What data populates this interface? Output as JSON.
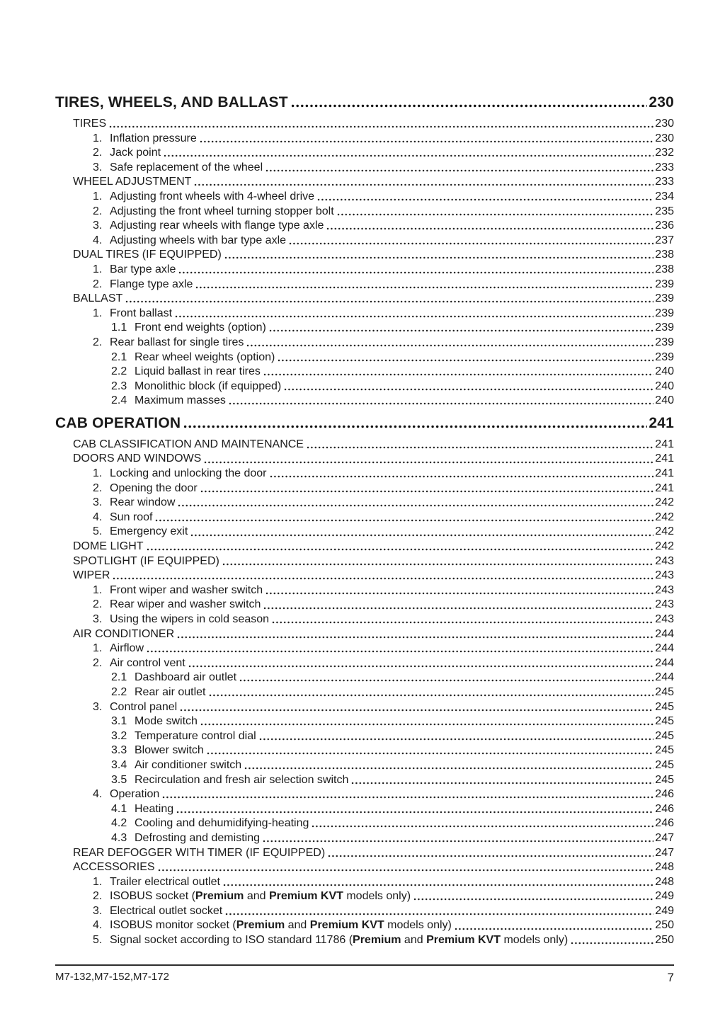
{
  "footer": {
    "model_codes": "M7-132,M7-152,M7-172",
    "page_number": "7"
  },
  "toc": {
    "sections": [
      {
        "title": "TIRES, WHEELS, AND BALLAST",
        "page": "230",
        "entries": [
          {
            "level": 1,
            "text": "TIRES",
            "page": "230"
          },
          {
            "level": 2,
            "num": "1.",
            "text": "Inflation pressure",
            "page": "230"
          },
          {
            "level": 2,
            "num": "2.",
            "text": "Jack point",
            "page": "232"
          },
          {
            "level": 2,
            "num": "3.",
            "text": "Safe replacement of the wheel",
            "page": "233"
          },
          {
            "level": 1,
            "text": "WHEEL ADJUSTMENT",
            "page": "233"
          },
          {
            "level": 2,
            "num": "1.",
            "text": "Adjusting front wheels with 4-wheel drive",
            "page": "234"
          },
          {
            "level": 2,
            "num": "2.",
            "text": "Adjusting the front wheel turning stopper bolt",
            "page": "235"
          },
          {
            "level": 2,
            "num": "3.",
            "text": "Adjusting rear wheels with flange type axle",
            "page": "236"
          },
          {
            "level": 2,
            "num": "4.",
            "text": "Adjusting wheels with bar type axle",
            "page": "237"
          },
          {
            "level": 1,
            "text": "DUAL TIRES (IF EQUIPPED)",
            "page": "238"
          },
          {
            "level": 2,
            "num": "1.",
            "text": "Bar type axle",
            "page": "238"
          },
          {
            "level": 2,
            "num": "2.",
            "text": "Flange type axle",
            "page": "239"
          },
          {
            "level": 1,
            "text": "BALLAST",
            "page": "239"
          },
          {
            "level": 2,
            "num": "1.",
            "text": "Front ballast",
            "page": "239"
          },
          {
            "level": 3,
            "num": "1.1",
            "text": "Front end weights (option)",
            "page": "239"
          },
          {
            "level": 2,
            "num": "2.",
            "text": "Rear ballast for single tires",
            "page": "239"
          },
          {
            "level": 3,
            "num": "2.1",
            "text": "Rear wheel weights (option)",
            "page": "239"
          },
          {
            "level": 3,
            "num": "2.2",
            "text": "Liquid ballast in rear tires",
            "page": "240"
          },
          {
            "level": 3,
            "num": "2.3",
            "text": "Monolithic block (if equipped)",
            "page": "240"
          },
          {
            "level": 3,
            "num": "2.4",
            "text": "Maximum masses",
            "page": "240"
          }
        ]
      },
      {
        "title": "CAB OPERATION",
        "page": "241",
        "entries": [
          {
            "level": 1,
            "text": "CAB CLASSIFICATION AND MAINTENANCE",
            "page": "241"
          },
          {
            "level": 1,
            "text": "DOORS AND WINDOWS",
            "page": "241"
          },
          {
            "level": 2,
            "num": "1.",
            "text": "Locking and unlocking the door",
            "page": "241"
          },
          {
            "level": 2,
            "num": "2.",
            "text": "Opening the door",
            "page": "241"
          },
          {
            "level": 2,
            "num": "3.",
            "text": "Rear window",
            "page": "242"
          },
          {
            "level": 2,
            "num": "4.",
            "text": "Sun roof",
            "page": "242"
          },
          {
            "level": 2,
            "num": "5.",
            "text": "Emergency exit",
            "page": "242"
          },
          {
            "level": 1,
            "text": "DOME LIGHT",
            "page": "242"
          },
          {
            "level": 1,
            "text": "SPOTLIGHT (IF EQUIPPED)",
            "page": "243"
          },
          {
            "level": 1,
            "text": "WIPER",
            "page": "243"
          },
          {
            "level": 2,
            "num": "1.",
            "text": "Front wiper and washer switch",
            "page": "243"
          },
          {
            "level": 2,
            "num": "2.",
            "text": "Rear wiper and washer switch",
            "page": "243"
          },
          {
            "level": 2,
            "num": "3.",
            "text": "Using the wipers in cold season",
            "page": "243"
          },
          {
            "level": 1,
            "text": "AIR CONDITIONER",
            "page": "244"
          },
          {
            "level": 2,
            "num": "1.",
            "text": "Airflow",
            "page": "244"
          },
          {
            "level": 2,
            "num": "2.",
            "text": "Air control vent",
            "page": "244"
          },
          {
            "level": 3,
            "num": "2.1",
            "text": "Dashboard air outlet",
            "page": "244"
          },
          {
            "level": 3,
            "num": "2.2",
            "text": "Rear air outlet",
            "page": "245"
          },
          {
            "level": 2,
            "num": "3.",
            "text": "Control panel",
            "page": "245"
          },
          {
            "level": 3,
            "num": "3.1",
            "text": "Mode switch",
            "page": "245"
          },
          {
            "level": 3,
            "num": "3.2",
            "text": "Temperature control dial",
            "page": "245"
          },
          {
            "level": 3,
            "num": "3.3",
            "text": "Blower switch",
            "page": "245"
          },
          {
            "level": 3,
            "num": "3.4",
            "text": "Air conditioner switch",
            "page": "245"
          },
          {
            "level": 3,
            "num": "3.5",
            "text": "Recirculation and fresh air selection switch",
            "page": "245"
          },
          {
            "level": 2,
            "num": "4.",
            "text": "Operation",
            "page": "246"
          },
          {
            "level": 3,
            "num": "4.1",
            "text": "Heating",
            "page": "246"
          },
          {
            "level": 3,
            "num": "4.2",
            "text": "Cooling and dehumidifying-heating",
            "page": "246"
          },
          {
            "level": 3,
            "num": "4.3",
            "text": "Defrosting and demisting",
            "page": "247"
          },
          {
            "level": 1,
            "text": "REAR DEFOGGER WITH TIMER (IF EQUIPPED)",
            "page": "247"
          },
          {
            "level": 1,
            "text": "ACCESSORIES",
            "page": "248"
          },
          {
            "level": 2,
            "num": "1.",
            "text": "Trailer electrical outlet",
            "page": "248"
          },
          {
            "level": 2,
            "num": "2.",
            "segments": [
              {
                "t": "ISOBUS socket (",
                "b": false
              },
              {
                "t": "Premium",
                "b": true
              },
              {
                "t": " and ",
                "b": false
              },
              {
                "t": "Premium KVT",
                "b": true
              },
              {
                "t": " models only)",
                "b": false
              }
            ],
            "page": "249"
          },
          {
            "level": 2,
            "num": "3.",
            "text": "Electrical outlet socket",
            "page": "249"
          },
          {
            "level": 2,
            "num": "4.",
            "segments": [
              {
                "t": "ISOBUS monitor socket (",
                "b": false
              },
              {
                "t": "Premium",
                "b": true
              },
              {
                "t": " and ",
                "b": false
              },
              {
                "t": "Premium KVT",
                "b": true
              },
              {
                "t": " models only)",
                "b": false
              }
            ],
            "page": "250"
          },
          {
            "level": 2,
            "num": "5.",
            "segments": [
              {
                "t": "Signal socket according to ISO standard 11786 (",
                "b": false
              },
              {
                "t": "Premium",
                "b": true
              },
              {
                "t": " and ",
                "b": false
              },
              {
                "t": "Premium KVT",
                "b": true
              },
              {
                "t": " models only)",
                "b": false
              }
            ],
            "page": "250"
          }
        ]
      }
    ]
  }
}
